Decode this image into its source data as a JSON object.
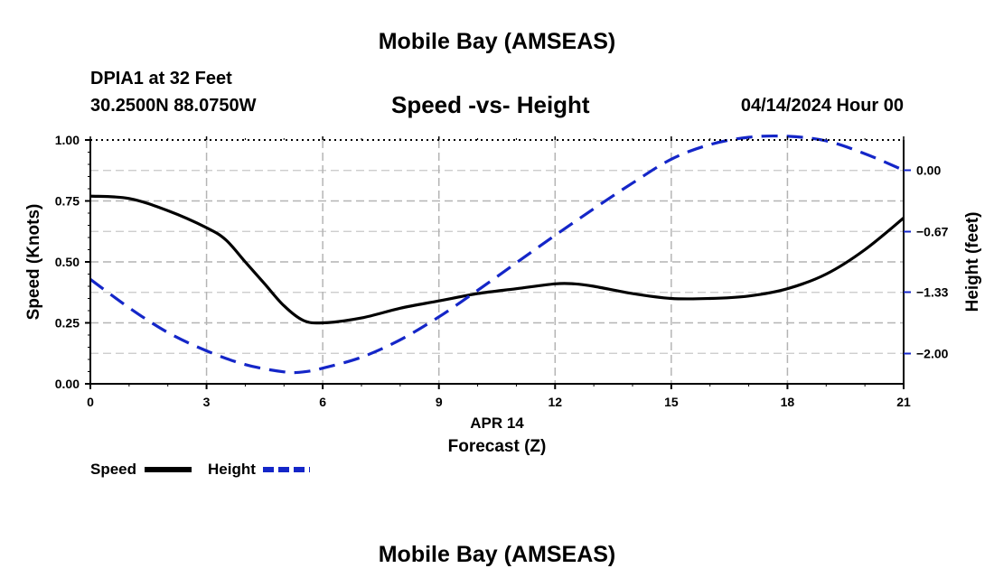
{
  "header": {
    "title": "Mobile Bay (AMSEAS)",
    "station": "DPIA1 at 32 Feet",
    "coordinates": "30.2500N  88.0750W",
    "subtitle": "Speed -vs- Height",
    "datetime": "04/14/2024 Hour 00"
  },
  "footer": {
    "title": "Mobile Bay (AMSEAS)"
  },
  "chart_data": {
    "type": "line",
    "title": "Speed -vs- Height",
    "xlabel": "Forecast (Z)",
    "xlabel_date": "APR 14",
    "ylabel_left": "Speed (Knots)",
    "ylabel_right": "Height (feet)",
    "xlim": [
      0,
      21
    ],
    "ylim_left": [
      0,
      1.0
    ],
    "ylim_right": [
      -2.33,
      0.33
    ],
    "x_ticks": [
      0,
      3,
      6,
      9,
      12,
      15,
      18,
      21
    ],
    "x_tick_labels": [
      "0",
      "3",
      "6",
      "9",
      "12",
      "15",
      "18",
      "21"
    ],
    "y_left_ticks": [
      0,
      0.25,
      0.5,
      0.75,
      1.0
    ],
    "y_left_tick_labels": [
      "0.00",
      "0.25",
      "0.50",
      "0.75",
      "1.00"
    ],
    "y_right_ticks": [
      0.0,
      -0.67,
      -1.33,
      -2.0
    ],
    "y_right_tick_labels": [
      "0.00",
      "−0.67",
      "−1.33",
      "−2.00"
    ],
    "grid": true,
    "legend_placement": "bottom-left",
    "series": [
      {
        "name": "Speed",
        "axis": "left",
        "color": "#000000",
        "style": "solid",
        "x": [
          0,
          1,
          2,
          3,
          3.5,
          4,
          4.5,
          5,
          5.5,
          6,
          7,
          8,
          9,
          10,
          11,
          12,
          12.5,
          13,
          14,
          15,
          16,
          17,
          18,
          19,
          20,
          21
        ],
        "values": [
          0.77,
          0.76,
          0.71,
          0.64,
          0.59,
          0.5,
          0.41,
          0.32,
          0.26,
          0.25,
          0.27,
          0.31,
          0.34,
          0.37,
          0.39,
          0.41,
          0.41,
          0.4,
          0.37,
          0.35,
          0.35,
          0.36,
          0.39,
          0.45,
          0.55,
          0.68
        ]
      },
      {
        "name": "Height",
        "axis": "right",
        "color": "#1426c8",
        "style": "dashed",
        "x": [
          0,
          1,
          2,
          3,
          4,
          5,
          5.5,
          6,
          7,
          8,
          9,
          10,
          11,
          12,
          13,
          14,
          15,
          16,
          17,
          18,
          19,
          20,
          21
        ],
        "values": [
          -1.19,
          -1.5,
          -1.77,
          -1.97,
          -2.12,
          -2.2,
          -2.2,
          -2.16,
          -2.04,
          -1.85,
          -1.6,
          -1.31,
          -1.01,
          -0.71,
          -0.42,
          -0.14,
          0.12,
          0.28,
          0.36,
          0.37,
          0.32,
          0.18,
          0.0
        ]
      }
    ]
  }
}
